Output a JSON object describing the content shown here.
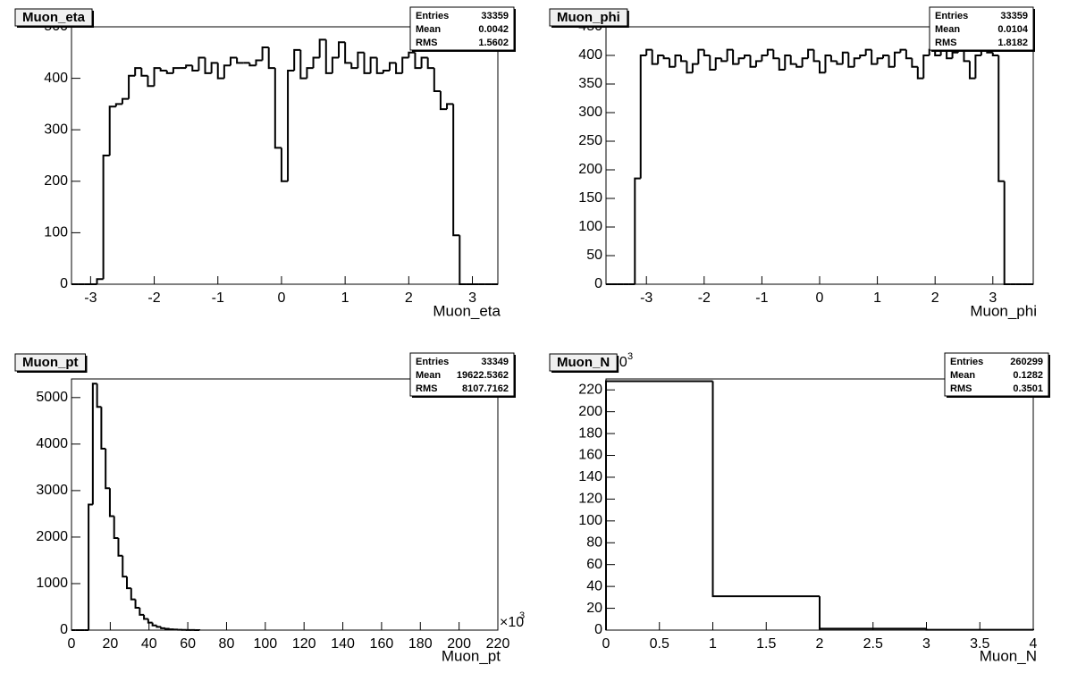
{
  "chart_data": [
    {
      "type": "histogram",
      "title": "Muon_eta",
      "x_label": "Muon_eta",
      "color": "#000000",
      "bins": [
        -3.3,
        -3.2,
        -3.1,
        -3,
        -2.9,
        -2.8,
        -2.7,
        -2.6,
        -2.5,
        -2.4,
        -2.3,
        -2.2,
        -2.1,
        -2,
        -1.9,
        -1.8,
        -1.7,
        -1.6,
        -1.5,
        -1.4,
        -1.3,
        -1.2,
        -1.1,
        -1,
        -0.9,
        -0.8,
        -0.7,
        -0.6,
        -0.5,
        -0.4,
        -0.3,
        -0.2,
        -0.1,
        0,
        0.1,
        0.2,
        0.3,
        0.4,
        0.5,
        0.6,
        0.7,
        0.8,
        0.9,
        1,
        1.1,
        1.2,
        1.3,
        1.4,
        1.5,
        1.6,
        1.7,
        1.8,
        1.9,
        2,
        2.1,
        2.2,
        2.3,
        2.4,
        2.5,
        2.6,
        2.7,
        2.8,
        2.9,
        3,
        3.1,
        3.2,
        3.3,
        3.4
      ],
      "values": [
        0,
        0,
        0,
        0,
        10,
        250,
        345,
        350,
        360,
        405,
        420,
        405,
        385,
        420,
        415,
        410,
        420,
        420,
        425,
        415,
        440,
        410,
        430,
        400,
        425,
        440,
        430,
        430,
        425,
        435,
        460,
        420,
        265,
        200,
        415,
        455,
        400,
        420,
        440,
        475,
        410,
        440,
        470,
        430,
        420,
        450,
        410,
        440,
        410,
        415,
        430,
        410,
        440,
        450,
        420,
        440,
        420,
        375,
        340,
        350,
        95,
        0,
        0,
        0,
        0,
        0,
        0
      ],
      "xlim": [
        -3.3,
        3.4
      ],
      "xticks": [
        -3,
        -2,
        -1,
        0,
        1,
        2,
        3
      ],
      "ylim": [
        0,
        500
      ],
      "yticks": [
        0,
        100,
        200,
        300,
        400,
        500
      ],
      "stats": [
        {
          "label": "Entries",
          "value": 33359
        },
        {
          "label": "Mean",
          "value": 0.0042
        },
        {
          "label": "RMS",
          "value": 1.5602
        }
      ]
    },
    {
      "type": "histogram",
      "title": "Muon_phi",
      "x_label": "Muon_phi",
      "color": "#000000",
      "bins": [
        -3.7,
        -3.6,
        -3.5,
        -3.4,
        -3.3,
        -3.2,
        -3.1,
        -3,
        -2.9,
        -2.8,
        -2.7,
        -2.6,
        -2.5,
        -2.4,
        -2.3,
        -2.2,
        -2.1,
        -2,
        -1.9,
        -1.8,
        -1.7,
        -1.6,
        -1.5,
        -1.4,
        -1.3,
        -1.2,
        -1.1,
        -1,
        -0.9,
        -0.8,
        -0.7,
        -0.6,
        -0.5,
        -0.4,
        -0.3,
        -0.2,
        -0.1,
        0,
        0.1,
        0.2,
        0.3,
        0.4,
        0.5,
        0.6,
        0.7,
        0.8,
        0.9,
        1,
        1.1,
        1.2,
        1.3,
        1.4,
        1.5,
        1.6,
        1.7,
        1.8,
        1.9,
        2,
        2.1,
        2.2,
        2.3,
        2.4,
        2.5,
        2.6,
        2.7,
        2.8,
        2.9,
        3,
        3.1,
        3.2,
        3.3,
        3.4,
        3.5,
        3.6,
        3.7
      ],
      "values": [
        0,
        0,
        0,
        0,
        0,
        185,
        400,
        410,
        385,
        400,
        395,
        380,
        400,
        390,
        370,
        385,
        410,
        400,
        375,
        395,
        390,
        410,
        385,
        395,
        400,
        380,
        390,
        400,
        410,
        395,
        375,
        400,
        385,
        380,
        395,
        410,
        390,
        370,
        400,
        390,
        385,
        405,
        380,
        395,
        400,
        410,
        385,
        395,
        400,
        380,
        405,
        410,
        395,
        380,
        360,
        400,
        410,
        400,
        420,
        395,
        405,
        410,
        390,
        360,
        400,
        420,
        405,
        400,
        180,
        0,
        0,
        0,
        0,
        0
      ],
      "xlim": [
        -3.7,
        3.7
      ],
      "xticks": [
        -3,
        -2,
        -1,
        0,
        1,
        2,
        3
      ],
      "ylim": [
        0,
        450
      ],
      "yticks": [
        0,
        50,
        100,
        150,
        200,
        250,
        300,
        350,
        400,
        450
      ],
      "stats": [
        {
          "label": "Entries",
          "value": 33359
        },
        {
          "label": "Mean",
          "value": 0.0104
        },
        {
          "label": "RMS",
          "value": 1.8182
        }
      ]
    },
    {
      "type": "histogram",
      "title": "Muon_pt",
      "x_label": "Muon_pt",
      "color": "#000000",
      "x_scale_label": "×10",
      "x_scale_power": "3",
      "bins": [
        0,
        2.2,
        4.4,
        6.6,
        8.8,
        11,
        13.2,
        15.4,
        17.6,
        19.8,
        22,
        24.2,
        26.4,
        28.6,
        30.8,
        33,
        35.2,
        37.4,
        39.6,
        41.8,
        44,
        46.2,
        48.4,
        50.6,
        52.8,
        55,
        57.2,
        59.4,
        61.6,
        63.8,
        66
      ],
      "values": [
        0,
        0,
        0,
        0,
        2700,
        5300,
        4800,
        3900,
        3050,
        2450,
        1980,
        1600,
        1150,
        900,
        660,
        480,
        330,
        240,
        160,
        100,
        70,
        40,
        30,
        18,
        12,
        8,
        5,
        3,
        2,
        1
      ],
      "xlim": [
        0,
        220
      ],
      "xticks": [
        0,
        20,
        40,
        60,
        80,
        100,
        120,
        140,
        160,
        180,
        200,
        220
      ],
      "ylim": [
        0,
        5400
      ],
      "yticks": [
        0,
        1000,
        2000,
        3000,
        4000,
        5000
      ],
      "stats": [
        {
          "label": "Entries",
          "value": 33349
        },
        {
          "label": "Mean",
          "value": 19622.5362
        },
        {
          "label": "RMS",
          "value": 8107.7162
        }
      ]
    },
    {
      "type": "histogram",
      "title": "Muon_N",
      "x_label": "Muon_N",
      "color": "#000000",
      "y_scale_label": "10",
      "y_scale_power": "3",
      "bins": [
        0,
        1,
        2,
        3,
        4
      ],
      "values": [
        228,
        31,
        1.3,
        0.3
      ],
      "xlim": [
        0,
        4
      ],
      "xticks": [
        0,
        0.5,
        1,
        1.5,
        2,
        2.5,
        3,
        3.5,
        4
      ],
      "ylim": [
        0,
        230
      ],
      "yticks": [
        0,
        20,
        40,
        60,
        80,
        100,
        120,
        140,
        160,
        180,
        200,
        220
      ],
      "stats": [
        {
          "label": "Entries",
          "value": 260299
        },
        {
          "label": "Mean",
          "value": 0.1282
        },
        {
          "label": "RMS",
          "value": 0.3501
        }
      ]
    }
  ]
}
